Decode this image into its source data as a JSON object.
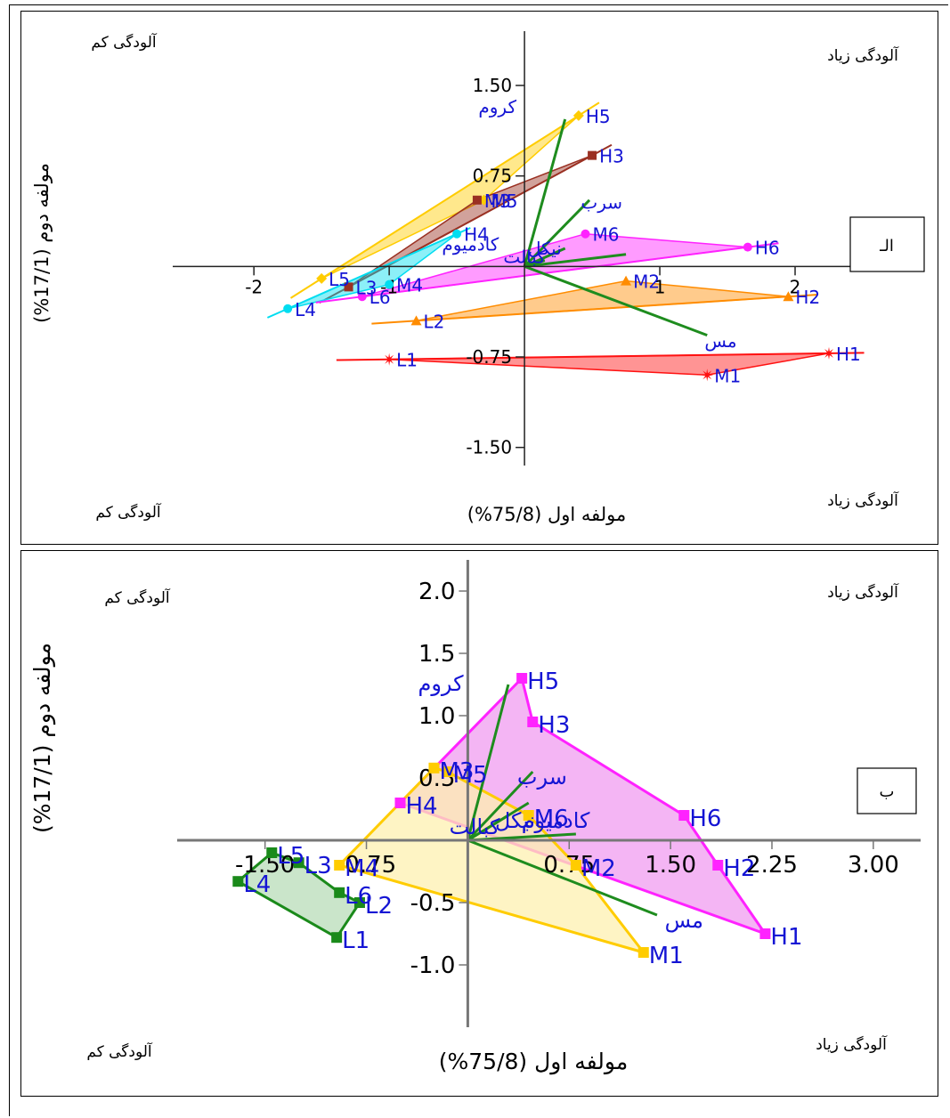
{
  "chart_data": [
    {
      "type": "scatter",
      "panel_label": "الـ",
      "xlabel": "مولفه اول (75/8%)",
      "ylabel": "مولفه دوم (17/1%)",
      "corners": {
        "top_left": "آلودگی کم",
        "top_right": "آلودگی زیاد",
        "bottom_left": "آلودگی کم",
        "bottom_right": "آلودگی زیاد"
      },
      "xlim": [
        -2.6,
        2.5
      ],
      "ylim": [
        -1.65,
        1.95
      ],
      "x_ticks": [
        {
          "v": -2,
          "t": "-2"
        },
        {
          "v": -1,
          "t": "-1"
        },
        {
          "v": 1,
          "t": "1"
        },
        {
          "v": 2,
          "t": "2"
        }
      ],
      "y_ticks": [
        {
          "v": 1.5,
          "t": "1.50"
        },
        {
          "v": 0.75,
          "t": "0.75"
        },
        {
          "v": -0.75,
          "t": "-0.75"
        },
        {
          "v": -1.5,
          "t": "-1.50"
        }
      ],
      "groups": [
        {
          "color": "#ffcc00",
          "marker": "diamond",
          "points": [
            {
              "label": "L5",
              "x": -1.5,
              "y": -0.1
            },
            {
              "label": "M5",
              "x": -0.3,
              "y": 0.55
            },
            {
              "label": "H5",
              "x": 0.4,
              "y": 1.25
            }
          ]
        },
        {
          "color": "#9a3022",
          "marker": "square",
          "points": [
            {
              "label": "L3",
              "x": -1.3,
              "y": -0.17
            },
            {
              "label": "M3",
              "x": -0.35,
              "y": 0.55
            },
            {
              "label": "H3",
              "x": 0.5,
              "y": 0.92
            }
          ]
        },
        {
          "color": "#00ddf0",
          "marker": "circle",
          "points": [
            {
              "label": "L4",
              "x": -1.75,
              "y": -0.35
            },
            {
              "label": "M4",
              "x": -1.0,
              "y": -0.15
            },
            {
              "label": "H4",
              "x": -0.5,
              "y": 0.27
            }
          ]
        },
        {
          "color": "#ff22ff",
          "marker": "circle",
          "points": [
            {
              "label": "L6",
              "x": -1.2,
              "y": -0.25
            },
            {
              "label": "M6",
              "x": 0.45,
              "y": 0.27
            },
            {
              "label": "H6",
              "x": 1.65,
              "y": 0.16
            }
          ]
        },
        {
          "color": "#ff8c00",
          "marker": "triangle",
          "points": [
            {
              "label": "L2",
              "x": -0.8,
              "y": -0.45
            },
            {
              "label": "M2",
              "x": 0.75,
              "y": -0.12
            },
            {
              "label": "H2",
              "x": 1.95,
              "y": -0.25
            }
          ]
        },
        {
          "color": "#ff1111",
          "marker": "star",
          "points": [
            {
              "label": "L1",
              "x": -1.0,
              "y": -0.77
            },
            {
              "label": "M1",
              "x": 1.35,
              "y": -0.9
            },
            {
              "label": "H1",
              "x": 2.25,
              "y": -0.72
            }
          ]
        }
      ],
      "vectors": [
        {
          "label": "کروم",
          "x": 0.3,
          "y": 1.22,
          "lx": -0.2,
          "ly": 1.27
        },
        {
          "label": "سرب",
          "x": 0.48,
          "y": 0.55,
          "lx": 0.57,
          "ly": 0.48
        },
        {
          "label": "کادمیوم",
          "x": 0.3,
          "y": 0.15,
          "lx": -0.4,
          "ly": 0.13
        },
        {
          "label": "کبالت",
          "x": 0.15,
          "y": 0.05,
          "lx": 0.0,
          "ly": 0.03
        },
        {
          "label": "نیکل",
          "x": 0.75,
          "y": 0.1,
          "lx": 0.15,
          "ly": 0.1
        },
        {
          "label": "مس",
          "x": 1.35,
          "y": -0.57,
          "lx": 1.45,
          "ly": -0.67
        }
      ]
    },
    {
      "type": "scatter",
      "panel_label": "ب",
      "xlabel": "مولفه اول (75/8%)",
      "ylabel": "مولفه دوم (17/1%)",
      "corners": {
        "top_left": "آلودگی کم",
        "top_right": "آلودگی زیاد",
        "bottom_left": "آلودگی کم",
        "bottom_right": "آلودگی زیاد"
      },
      "xlim": [
        -2.15,
        3.35
      ],
      "ylim": [
        -1.5,
        2.25
      ],
      "x_ticks": [
        {
          "v": -1.5,
          "t": "-1.50"
        },
        {
          "v": -0.75,
          "t": "-0.75"
        },
        {
          "v": 0.75,
          "t": "0.75"
        },
        {
          "v": 1.5,
          "t": "1.50"
        },
        {
          "v": 2.25,
          "t": "2.25"
        },
        {
          "v": 3.0,
          "t": "3.00"
        }
      ],
      "y_ticks": [
        {
          "v": 2.0,
          "t": "2.0"
        },
        {
          "v": 1.5,
          "t": "1.5"
        },
        {
          "v": 1.0,
          "t": "1.0"
        },
        {
          "v": 0.5,
          "t": "0.5"
        },
        {
          "v": -0.5,
          "t": "-0.5"
        },
        {
          "v": -1.0,
          "t": "-1.0"
        }
      ],
      "groups": [
        {
          "color": "#ff22ff",
          "fill": "#f09cf0",
          "points": [
            {
              "label": "H5",
              "x": 0.4,
              "y": 1.3
            },
            {
              "label": "H3",
              "x": 0.48,
              "y": 0.95
            },
            {
              "label": "H6",
              "x": 1.6,
              "y": 0.2
            },
            {
              "label": "H2",
              "x": 1.85,
              "y": -0.2
            },
            {
              "label": "H1",
              "x": 2.2,
              "y": -0.75
            },
            {
              "label": "H4",
              "x": -0.5,
              "y": 0.3
            }
          ]
        },
        {
          "color": "#ffcc00",
          "fill": "#fdf0b0",
          "points": [
            {
              "label": "M3",
              "x": -0.25,
              "y": 0.58
            },
            {
              "label": "M5",
              "x": -0.15,
              "y": 0.55
            },
            {
              "label": "M6",
              "x": 0.45,
              "y": 0.2
            },
            {
              "label": "M2",
              "x": 0.8,
              "y": -0.2
            },
            {
              "label": "M1",
              "x": 1.3,
              "y": -0.9
            },
            {
              "label": "M4",
              "x": -0.95,
              "y": -0.2
            }
          ]
        },
        {
          "color": "#1a8a1a",
          "fill": "#b8dcb8",
          "points": [
            {
              "label": "L5",
              "x": -1.45,
              "y": -0.1
            },
            {
              "label": "L3",
              "x": -1.25,
              "y": -0.18
            },
            {
              "label": "L6",
              "x": -0.95,
              "y": -0.42
            },
            {
              "label": "L2",
              "x": -0.8,
              "y": -0.5
            },
            {
              "label": "L1",
              "x": -0.97,
              "y": -0.78
            },
            {
              "label": "L4",
              "x": -1.7,
              "y": -0.33
            }
          ]
        }
      ],
      "vectors": [
        {
          "label": "کروم",
          "x": 0.3,
          "y": 1.25,
          "lx": -0.2,
          "ly": 1.2
        },
        {
          "label": "سرب",
          "x": 0.48,
          "y": 0.55,
          "lx": 0.55,
          "ly": 0.45
        },
        {
          "label": "کادمیوم",
          "x": 0.45,
          "y": 0.3,
          "lx": 0.65,
          "ly": 0.1
        },
        {
          "label": "کبالت",
          "x": 0.3,
          "y": 0.2,
          "lx": 0.05,
          "ly": 0.05
        },
        {
          "label": "نیکل",
          "x": 0.8,
          "y": 0.05,
          "lx": 0.35,
          "ly": 0.1
        },
        {
          "label": "مس",
          "x": 1.4,
          "y": -0.6,
          "lx": 1.6,
          "ly": -0.7
        }
      ]
    }
  ]
}
